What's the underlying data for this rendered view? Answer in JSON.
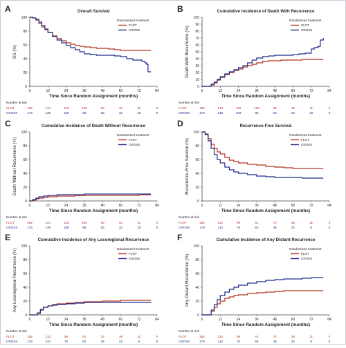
{
  "figure": {
    "colors": {
      "flot": "#b5321f",
      "cross": "#1f2a8a",
      "axis": "#444444",
      "text": "#222222",
      "grid": "#dddddd",
      "risk_flot": "#b5321f",
      "risk_cross": "#1f2a8a"
    },
    "risk_header": "Number at risk"
  },
  "chart_data": [
    {
      "letter": "A",
      "type": "line",
      "title": "Overall Survival",
      "xlabel": "Time Since Random Assignment (months)",
      "ylabel": "OS (%)",
      "xticks": [
        0,
        12,
        24,
        36,
        48,
        60,
        72,
        84
      ],
      "yticks": [
        0,
        20,
        40,
        60,
        80,
        100
      ],
      "xlim": [
        0,
        84
      ],
      "ylim": [
        0,
        100
      ],
      "legend": {
        "title": "Randomized treatment",
        "position": "top-right"
      },
      "series": [
        {
          "name": "FLOT",
          "color": "#b5321f",
          "x": [
            0,
            2,
            4,
            6,
            8,
            10,
            12,
            15,
            18,
            21,
            24,
            27,
            30,
            33,
            36,
            40,
            44,
            48,
            52,
            56,
            60,
            66,
            72,
            78,
            80
          ],
          "y": [
            100,
            99,
            96,
            91,
            86,
            82,
            78,
            73,
            69,
            66,
            63,
            61,
            59,
            58,
            57,
            56,
            55,
            55,
            54,
            53,
            52,
            52,
            52,
            52,
            52
          ]
        },
        {
          "name": "CROSS",
          "color": "#1f2a8a",
          "x": [
            0,
            2,
            4,
            6,
            8,
            10,
            12,
            15,
            18,
            21,
            24,
            27,
            30,
            33,
            36,
            40,
            44,
            48,
            52,
            56,
            60,
            64,
            68,
            72,
            74,
            76,
            77,
            78,
            80
          ],
          "y": [
            100,
            99,
            97,
            93,
            88,
            83,
            78,
            72,
            67,
            63,
            59,
            56,
            53,
            50,
            47,
            46,
            45,
            45,
            45,
            44,
            43,
            40,
            38,
            38,
            36,
            34,
            32,
            21,
            21
          ]
        }
      ],
      "risk": {
        "x": [
          0,
          12,
          24,
          36,
          48,
          60,
          72,
          84
        ],
        "rows": [
          {
            "label": "FLOT",
            "values": [
              "182",
              "144",
              "119",
              "105",
              "93",
              "43",
              "11",
              "0"
            ]
          },
          {
            "label": "CROSS",
            "values": [
              "179",
              "138",
              "108",
              "88",
              "53",
              "32",
              "15",
              "0"
            ]
          }
        ]
      }
    },
    {
      "letter": "B",
      "type": "line",
      "title": "Cumulative Incidence of Death With Recurrence",
      "xlabel": "Time Since Random Assignment (months)",
      "ylabel": "Death With Recurrence (%)",
      "xticks": [
        0,
        12,
        24,
        36,
        48,
        60,
        72,
        84
      ],
      "yticks": [
        0,
        10,
        20,
        30,
        40,
        50,
        60,
        70,
        80,
        90,
        100
      ],
      "xlim": [
        0,
        84
      ],
      "ylim": [
        0,
        100
      ],
      "legend": {
        "title": "Randomized treatment",
        "position": "top-right"
      },
      "series": [
        {
          "name": "FLOT",
          "color": "#b5321f",
          "x": [
            0,
            4,
            6,
            8,
            10,
            12,
            15,
            18,
            21,
            24,
            27,
            30,
            33,
            36,
            40,
            44,
            48,
            52,
            56,
            60,
            66,
            72,
            78,
            80
          ],
          "y": [
            0,
            0,
            2,
            5,
            9,
            13,
            17,
            20,
            23,
            25,
            28,
            30,
            32,
            34,
            36,
            37,
            37,
            38,
            38,
            38,
            39,
            39,
            39,
            39
          ]
        },
        {
          "name": "CROSS",
          "color": "#1f2a8a",
          "x": [
            0,
            4,
            6,
            8,
            10,
            12,
            15,
            18,
            21,
            24,
            27,
            30,
            33,
            36,
            40,
            44,
            48,
            52,
            56,
            60,
            64,
            68,
            72,
            74,
            76,
            77,
            78,
            80
          ],
          "y": [
            0,
            0,
            3,
            6,
            10,
            14,
            18,
            21,
            24,
            27,
            30,
            34,
            38,
            41,
            43,
            44,
            45,
            45,
            45,
            46,
            47,
            48,
            54,
            56,
            57,
            58,
            67,
            70
          ]
        }
      ],
      "risk": {
        "x": [
          0,
          12,
          24,
          36,
          48,
          60,
          72,
          84
        ],
        "rows": [
          {
            "label": "FLOT",
            "values": [
              "182",
              "144",
              "119",
              "105",
              "93",
              "43",
              "11",
              "0"
            ]
          },
          {
            "label": "CROSS",
            "values": [
              "179",
              "138",
              "108",
              "88",
              "53",
              "32",
              "15",
              "0"
            ]
          }
        ]
      }
    },
    {
      "letter": "C",
      "type": "line",
      "title": "Cumulative Incidence of Death Without Recurrence",
      "xlabel": "Time Since Random Assignment (months)",
      "ylabel": "Death Without Recurrence (%)",
      "xticks": [
        0,
        12,
        24,
        36,
        48,
        60,
        72,
        84
      ],
      "yticks": [
        0,
        20,
        40,
        60,
        80,
        100
      ],
      "xlim": [
        0,
        84
      ],
      "ylim": [
        0,
        100
      ],
      "legend": {
        "title": "Randomized treatment",
        "position": "top-right"
      },
      "series": [
        {
          "name": "FLOT",
          "color": "#b5321f",
          "x": [
            0,
            2,
            4,
            6,
            9,
            12,
            18,
            24,
            30,
            36,
            48,
            60,
            72,
            80
          ],
          "y": [
            0,
            1,
            3,
            4,
            5,
            6,
            7,
            7,
            8,
            8,
            8,
            8,
            9,
            9
          ]
        },
        {
          "name": "CROSS",
          "color": "#1f2a8a",
          "x": [
            0,
            2,
            4,
            6,
            9,
            12,
            18,
            24,
            30,
            36,
            48,
            60,
            72,
            80
          ],
          "y": [
            0,
            2,
            4,
            6,
            7,
            8,
            9,
            9,
            9,
            10,
            10,
            10,
            10,
            10
          ]
        }
      ],
      "risk": {
        "x": [
          0,
          12,
          24,
          36,
          48,
          60,
          72,
          84
        ],
        "rows": [
          {
            "label": "FLOT",
            "values": [
              "182",
              "144",
              "119",
              "105",
              "93",
              "43",
              "11",
              "0"
            ]
          },
          {
            "label": "CROSS",
            "values": [
              "179",
              "138",
              "108",
              "88",
              "53",
              "32",
              "15",
              "0"
            ]
          }
        ]
      }
    },
    {
      "letter": "D",
      "type": "line",
      "title": "Recurrence-Free Survival",
      "xlabel": "Time Since Random Assignment (months)",
      "ylabel": "Recurrence-Free Survival (%)",
      "xticks": [
        0,
        12,
        24,
        36,
        48,
        60,
        72,
        84
      ],
      "yticks": [
        0,
        20,
        40,
        60,
        80,
        100
      ],
      "xlim": [
        0,
        84
      ],
      "ylim": [
        0,
        100
      ],
      "legend": {
        "title": "Randomized treatment",
        "position": "top-right"
      },
      "series": [
        {
          "name": "FLOT",
          "color": "#b5321f",
          "x": [
            0,
            2,
            4,
            6,
            8,
            10,
            12,
            15,
            18,
            21,
            24,
            30,
            36,
            42,
            48,
            54,
            60,
            66,
            72,
            78,
            80
          ],
          "y": [
            100,
            97,
            90,
            82,
            76,
            71,
            68,
            63,
            59,
            57,
            55,
            53,
            52,
            50,
            49,
            48,
            47,
            47,
            47,
            47,
            47
          ]
        },
        {
          "name": "CROSS",
          "color": "#1f2a8a",
          "x": [
            0,
            2,
            4,
            6,
            8,
            10,
            12,
            15,
            18,
            21,
            24,
            30,
            36,
            42,
            48,
            54,
            60,
            66,
            72,
            78,
            80
          ],
          "y": [
            100,
            96,
            87,
            76,
            67,
            60,
            55,
            49,
            45,
            42,
            40,
            38,
            36,
            35,
            34,
            34,
            34,
            33,
            33,
            33,
            33
          ]
        }
      ],
      "risk": {
        "x": [
          0,
          12,
          24,
          36,
          48,
          60,
          72,
          84
        ],
        "rows": [
          {
            "label": "FLOT",
            "values": [
              "182",
              "132",
              "99",
              "91",
              "72",
              "38",
              "11",
              "0"
            ]
          },
          {
            "label": "CROSS",
            "values": [
              "179",
              "110",
              "76",
              "60",
              "38",
              "22",
              "9",
              "0"
            ]
          }
        ]
      }
    },
    {
      "letter": "E",
      "type": "line",
      "title": "Cumulative Incidence of Any Locoregional Recurrence",
      "xlabel": "Time Since Random Assignment (months)",
      "ylabel": "Any Locoregional Recurrence (%)",
      "xticks": [
        0,
        12,
        24,
        36,
        48,
        60,
        72,
        84
      ],
      "yticks": [
        0,
        20,
        40,
        60,
        80,
        100
      ],
      "xlim": [
        0,
        84
      ],
      "ylim": [
        0,
        100
      ],
      "legend": {
        "title": "Randomized treatment",
        "position": "top-right"
      },
      "series": [
        {
          "name": "FLOT",
          "color": "#b5321f",
          "x": [
            0,
            3,
            5,
            7,
            9,
            12,
            15,
            18,
            24,
            30,
            36,
            48,
            60,
            72,
            80
          ],
          "y": [
            0,
            0,
            3,
            8,
            11,
            13,
            15,
            16,
            17,
            18,
            19,
            20,
            21,
            21,
            21
          ]
        },
        {
          "name": "CROSS",
          "color": "#1f2a8a",
          "x": [
            0,
            3,
            5,
            7,
            9,
            12,
            15,
            18,
            24,
            30,
            36,
            48,
            60,
            72,
            80
          ],
          "y": [
            0,
            0,
            2,
            7,
            11,
            13,
            14,
            15,
            16,
            17,
            18,
            18,
            18,
            18,
            18
          ]
        }
      ],
      "risk": {
        "x": [
          0,
          12,
          24,
          36,
          48,
          60,
          72,
          84
        ],
        "rows": [
          {
            "label": "FLOT",
            "values": [
              "182",
              "132",
              "99",
              "91",
              "72",
              "38",
              "11",
              "0"
            ]
          },
          {
            "label": "CROSS",
            "values": [
              "179",
              "110",
              "76",
              "60",
              "38",
              "22",
              "9",
              "0"
            ]
          }
        ]
      }
    },
    {
      "letter": "F",
      "type": "line",
      "title": "Cumulative Incidence of Any Distant Recurrence",
      "xlabel": "Time Since Random Assignment (months)",
      "ylabel": "Any Distant Recurrence (%)",
      "xticks": [
        0,
        12,
        24,
        36,
        48,
        60,
        72,
        84
      ],
      "yticks": [
        0,
        20,
        40,
        60,
        80,
        100
      ],
      "xlim": [
        0,
        84
      ],
      "ylim": [
        0,
        100
      ],
      "legend": {
        "title": "Randomized treatment",
        "position": "top-right"
      },
      "series": [
        {
          "name": "FLOT",
          "color": "#b5321f",
          "x": [
            0,
            4,
            6,
            8,
            10,
            12,
            15,
            18,
            21,
            24,
            30,
            36,
            42,
            48,
            54,
            60,
            66,
            72,
            80
          ],
          "y": [
            0,
            0,
            5,
            11,
            16,
            20,
            24,
            26,
            28,
            29,
            31,
            32,
            33,
            34,
            35,
            35,
            35,
            35,
            35
          ]
        },
        {
          "name": "CROSS",
          "color": "#1f2a8a",
          "x": [
            0,
            4,
            6,
            8,
            10,
            12,
            15,
            18,
            21,
            24,
            30,
            36,
            42,
            48,
            54,
            60,
            66,
            72,
            80
          ],
          "y": [
            0,
            0,
            7,
            15,
            22,
            28,
            33,
            37,
            40,
            43,
            46,
            48,
            50,
            51,
            52,
            52,
            53,
            54,
            54
          ]
        }
      ],
      "risk": {
        "x": [
          0,
          12,
          24,
          36,
          48,
          60,
          72,
          84
        ],
        "rows": [
          {
            "label": "FLOT",
            "values": [
              "182",
              "132",
              "99",
              "91",
              "72",
              "38",
              "11",
              "0"
            ]
          },
          {
            "label": "CROSS",
            "values": [
              "179",
              "110",
              "76",
              "60",
              "38",
              "22",
              "9",
              "0"
            ]
          }
        ]
      }
    }
  ]
}
